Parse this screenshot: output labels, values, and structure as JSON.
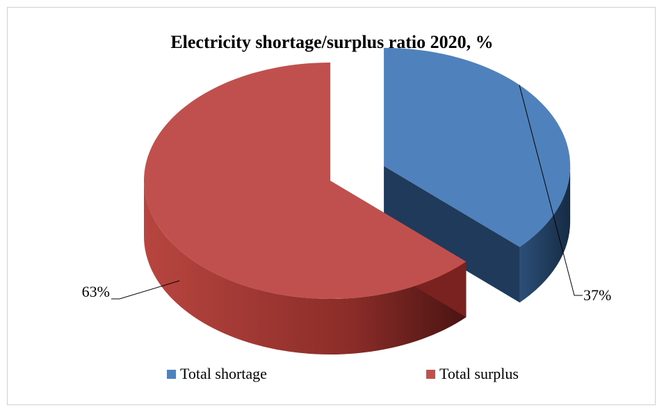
{
  "chart_data": {
    "type": "pie",
    "title": "Electricity shortage/surplus  ratio 2020, %",
    "slices": [
      {
        "name": "Total shortage",
        "value": 37,
        "label": "37%",
        "color": "#4f81bd",
        "side_color": "#1f3a5a"
      },
      {
        "name": "Total surplus",
        "value": 63,
        "label": "63%",
        "color": "#c0504d",
        "side_color": "#7a2220"
      }
    ],
    "legend_position": "bottom",
    "style": "3d-exploded"
  }
}
